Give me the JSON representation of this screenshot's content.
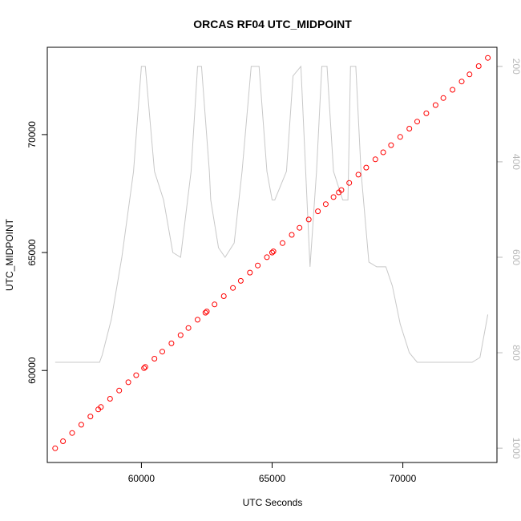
{
  "chart_data": {
    "type": "scatter",
    "title": "ORCAS RF04 UTC_MIDPOINT",
    "xlabel": "UTC Seconds",
    "ylabel": "UTC_MIDPOINT",
    "xlim": [
      56400,
      73600
    ],
    "ylim": [
      56100,
      73700
    ],
    "x_ticks": [
      60000,
      65000,
      70000
    ],
    "x_tick_labels": [
      "60000",
      "65000",
      "70000"
    ],
    "y_ticks": [
      60000,
      65000,
      70000
    ],
    "y_tick_labels": [
      "60000",
      "65000",
      "70000"
    ],
    "grid": false,
    "series": [
      {
        "marker": "open-circle",
        "color": "#ff0000",
        "x": [
          56700,
          57000,
          57350,
          57700,
          58050,
          58350,
          58450,
          58800,
          59150,
          59500,
          59800,
          60100,
          60150,
          60500,
          60800,
          61150,
          61500,
          61800,
          62150,
          62450,
          62500,
          62800,
          63150,
          63500,
          63800,
          64150,
          64450,
          64800,
          65000,
          65050,
          65400,
          65750,
          66050,
          66400,
          66750,
          67050,
          67350,
          67550,
          67650,
          67950,
          68300,
          68600,
          68950,
          69250,
          69550,
          69900,
          70250,
          70550,
          70900,
          71250,
          71550,
          71900,
          72250,
          72550,
          72900,
          73250
        ],
        "y": [
          56700,
          57000,
          57350,
          57700,
          58050,
          58350,
          58450,
          58800,
          59150,
          59500,
          59800,
          60100,
          60150,
          60500,
          60800,
          61150,
          61500,
          61800,
          62150,
          62450,
          62500,
          62800,
          63150,
          63500,
          63800,
          64150,
          64450,
          64800,
          65000,
          65050,
          65400,
          65750,
          66050,
          66400,
          66750,
          67050,
          67350,
          67550,
          67650,
          67950,
          68300,
          68600,
          68950,
          69250,
          69550,
          69900,
          70250,
          70550,
          70900,
          71250,
          71550,
          71900,
          72250,
          72550,
          72900,
          73250
        ]
      },
      {
        "marker": "line",
        "color": "#c8c8c8",
        "axis": "right",
        "x": [
          56700,
          58400,
          58500,
          58850,
          59250,
          59700,
          60000,
          60150,
          60500,
          60850,
          61200,
          61500,
          61900,
          62150,
          62300,
          62600,
          62650,
          62950,
          63200,
          63550,
          63850,
          64200,
          64500,
          64800,
          65000,
          65100,
          65550,
          65800,
          66100,
          66450,
          66700,
          66900,
          67100,
          67350,
          67700,
          67900,
          68000,
          68200,
          68400,
          68700,
          69000,
          69350,
          69600,
          69900,
          70250,
          70550,
          71000,
          72000,
          72300,
          72650,
          72950,
          73250
        ],
        "y": [
          820,
          820,
          805,
          730,
          600,
          420,
          200,
          200,
          420,
          480,
          590,
          600,
          420,
          200,
          200,
          420,
          480,
          580,
          600,
          570,
          420,
          200,
          200,
          420,
          480,
          480,
          420,
          220,
          200,
          620,
          420,
          200,
          200,
          420,
          480,
          480,
          200,
          200,
          420,
          610,
          620,
          620,
          660,
          740,
          800,
          820,
          820,
          820,
          820,
          820,
          810,
          720
        ]
      }
    ],
    "right_axis": {
      "ylim": [
        1030,
        160
      ],
      "ticks": [
        200,
        400,
        600,
        800,
        1000
      ],
      "tick_labels": [
        "200",
        "400",
        "600",
        "800",
        "1000"
      ]
    }
  }
}
